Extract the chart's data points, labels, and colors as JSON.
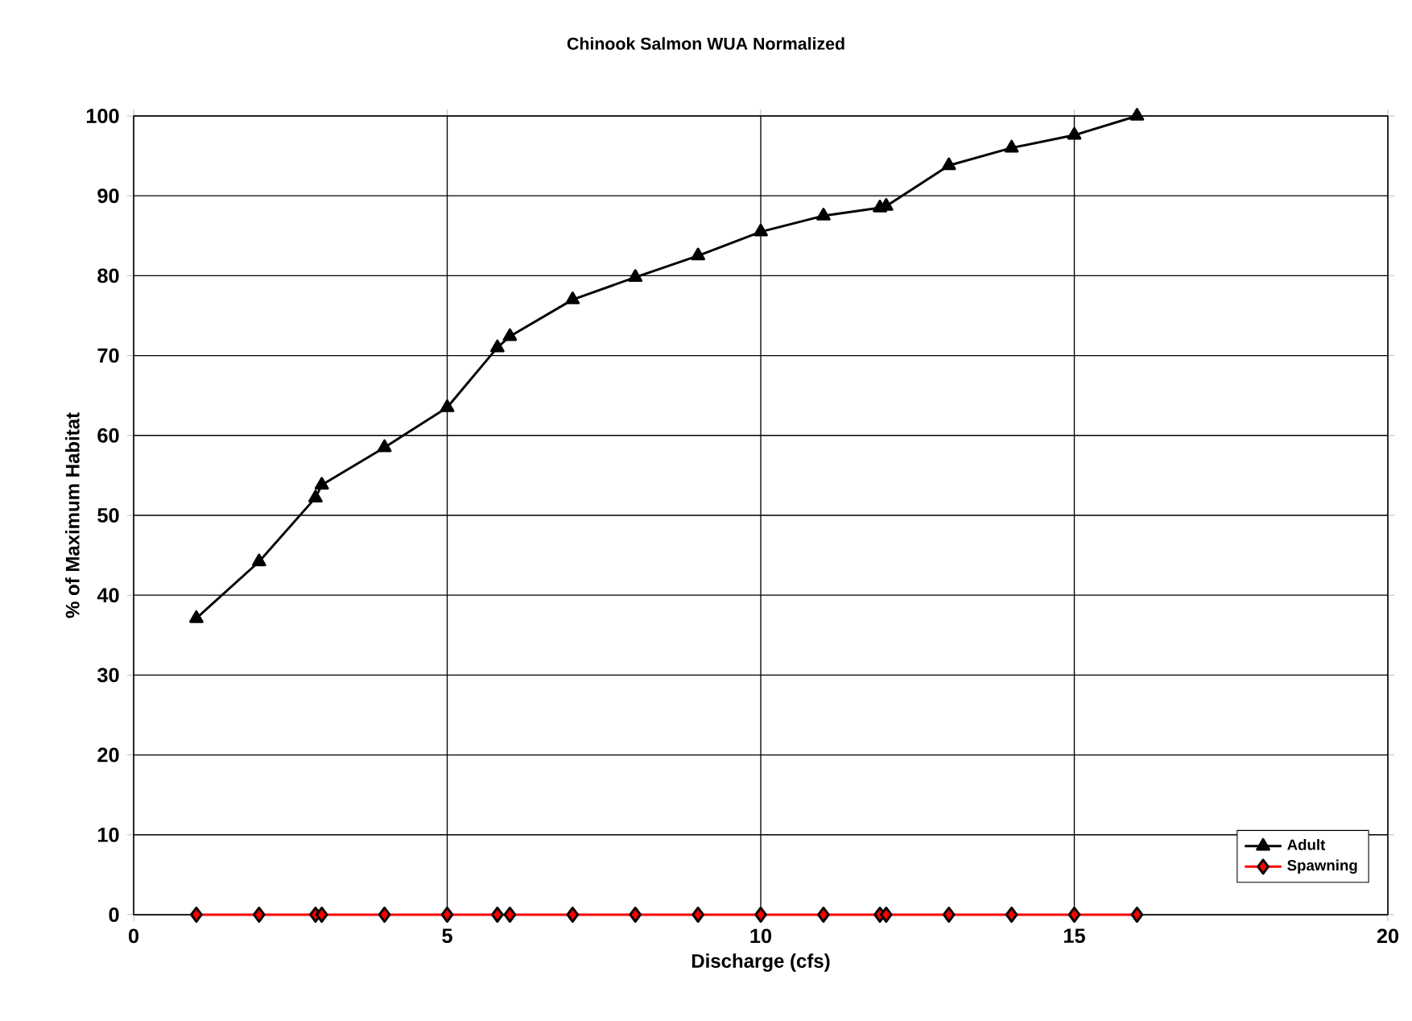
{
  "chart_data": {
    "type": "line",
    "title": "Chinook Salmon WUA Normalized",
    "xlabel": "Discharge (cfs)",
    "ylabel": "% of Maximum Habitat",
    "xlim": [
      0,
      20
    ],
    "ylim": [
      0,
      100
    ],
    "xticks": [
      0,
      5,
      10,
      15,
      20
    ],
    "yticks": [
      0,
      10,
      20,
      30,
      40,
      50,
      60,
      70,
      80,
      90,
      100
    ],
    "grid": true,
    "legend": "bottom right",
    "line_style": "solid",
    "x": [
      1,
      2,
      2.9,
      3,
      4,
      5,
      5.8,
      6,
      7,
      8,
      9,
      10,
      11,
      11.9,
      12,
      13,
      14,
      15,
      16
    ],
    "series": [
      {
        "name": "Adult",
        "color": "#000000",
        "marker": "triangle",
        "values": [
          37.1,
          44.2,
          52.2,
          53.8,
          58.5,
          63.5,
          71.0,
          72.4,
          77.0,
          79.8,
          82.5,
          85.5,
          87.5,
          88.5,
          88.7,
          93.8,
          96.0,
          97.6,
          100
        ]
      },
      {
        "name": "Spawning",
        "color": "#ff0000",
        "marker": "diamond",
        "values": [
          0,
          0,
          0,
          0,
          0,
          0,
          0,
          0,
          0,
          0,
          0,
          0,
          0,
          0,
          0,
          0,
          0,
          0,
          0
        ]
      }
    ]
  }
}
